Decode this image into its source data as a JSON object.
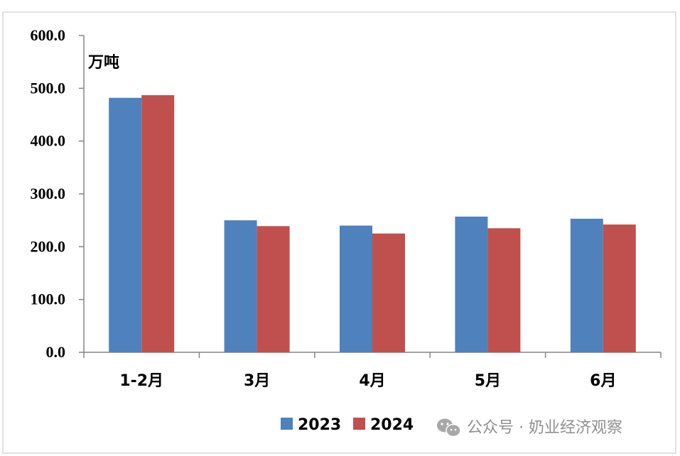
{
  "chart_data": {
    "type": "bar",
    "unit_label": "万吨",
    "categories": [
      "1-2月",
      "3月",
      "4月",
      "5月",
      "6月"
    ],
    "series": [
      {
        "name": "2023",
        "color": "#4F81BD",
        "values": [
          482,
          250,
          240,
          257,
          253
        ]
      },
      {
        "name": "2024",
        "color": "#C0504D",
        "values": [
          487,
          239,
          225,
          235,
          242
        ]
      }
    ],
    "ylim": [
      0,
      600
    ],
    "yticks": [
      "0.0",
      "100.0",
      "200.0",
      "300.0",
      "400.0",
      "500.0",
      "600.0"
    ],
    "ytick_values": [
      0,
      100,
      200,
      300,
      400,
      500,
      600
    ],
    "grid": false,
    "legend_position": "bottom"
  },
  "watermark": {
    "text": "公众号 · 奶业经济观察",
    "icon": "wechat-icon",
    "color": "#8f8f8f"
  }
}
